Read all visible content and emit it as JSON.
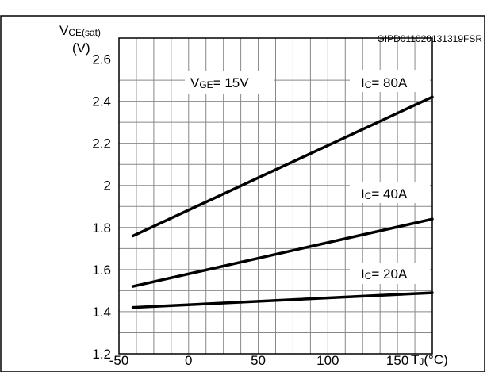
{
  "header": {
    "code": "GIPD011020131319FSR"
  },
  "chart_data": {
    "type": "line",
    "ylabel_main": "V",
    "ylabel_sub": "CE(sat)",
    "ylabel_unit": "(V)",
    "xlabel_main": "T",
    "xlabel_sub": "J",
    "xlabel_unit": "(°C)",
    "xlim": [
      -50,
      175
    ],
    "ylim": [
      1.2,
      2.7
    ],
    "x_ticks": [
      -50,
      0,
      50,
      100,
      150
    ],
    "x_tick_labels": [
      "-50",
      "0",
      "50",
      "100",
      "150"
    ],
    "y_ticks": [
      1.2,
      1.4,
      1.6,
      1.8,
      2.0,
      2.2,
      2.4,
      2.6
    ],
    "y_tick_labels": [
      "1.2",
      "1.4",
      "1.6",
      "1.8",
      "2",
      "2.2",
      "2.4",
      "2.6"
    ],
    "grid": true,
    "condition": {
      "main": "V",
      "sub": "GE",
      "rest": "= 15V"
    },
    "series": [
      {
        "name": "Ic= 80A",
        "label_main": "I",
        "label_sub": "C",
        "label_rest": "= 80A",
        "x": [
          -40,
          175
        ],
        "y": [
          1.76,
          2.42
        ]
      },
      {
        "name": "Ic= 40A",
        "label_main": "I",
        "label_sub": "C",
        "label_rest": "= 40A",
        "x": [
          -40,
          175
        ],
        "y": [
          1.52,
          1.84
        ]
      },
      {
        "name": "Ic= 20A",
        "label_main": "I",
        "label_sub": "C",
        "label_rest": "= 20A",
        "x": [
          -40,
          175
        ],
        "y": [
          1.42,
          1.49
        ]
      }
    ]
  }
}
